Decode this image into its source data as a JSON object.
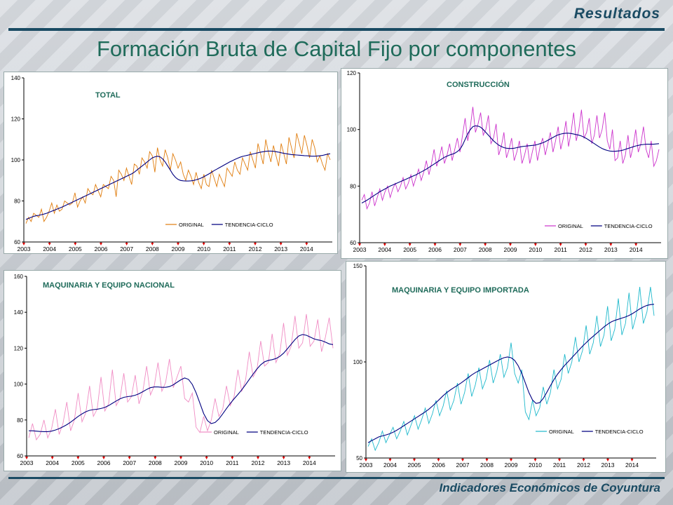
{
  "header": {
    "section_label": "Resultados"
  },
  "title": "Formación Bruta de Capital Fijo por componentes",
  "footer": {
    "label": "Indicadores Económicos de Coyuntura"
  },
  "chart_data": [
    {
      "type": "line",
      "title": "TOTAL",
      "ylim": [
        60,
        140
      ],
      "yticks": [
        60,
        80,
        100,
        120,
        140
      ],
      "xticks": [
        "2003",
        "2004",
        "2005",
        "2006",
        "2007",
        "2008",
        "2009",
        "2010",
        "2011",
        "2012",
        "2013",
        "2014"
      ],
      "legend": "bottom-center",
      "series": [
        {
          "name": "ORIGINAL",
          "color": "#e07d0e",
          "values": [
            69,
            72,
            70,
            74,
            73,
            72,
            76,
            70,
            72,
            75,
            79,
            74,
            78,
            75,
            76,
            80,
            79,
            78,
            79,
            84,
            77,
            80,
            82,
            79,
            86,
            84,
            83,
            88,
            85,
            82,
            88,
            87,
            86,
            92,
            90,
            82,
            95,
            93,
            90,
            96,
            92,
            88,
            98,
            97,
            93,
            101,
            99,
            96,
            104,
            102,
            94,
            106,
            100,
            97,
            105,
            101,
            95,
            103,
            100,
            96,
            99,
            93,
            90,
            95,
            92,
            88,
            94,
            89,
            86,
            93,
            88,
            87,
            95,
            91,
            87,
            93,
            90,
            87,
            96,
            94,
            92,
            99,
            95,
            93,
            101,
            98,
            95,
            104,
            100,
            96,
            108,
            103,
            98,
            110,
            104,
            99,
            107,
            102,
            97,
            108,
            103,
            98,
            111,
            106,
            101,
            113,
            108,
            103,
            112,
            107,
            101,
            110,
            106,
            99,
            102,
            98,
            95,
            103,
            100
          ]
        },
        {
          "name": "TENDENCIA-CICLO",
          "color": "#000080",
          "values": [
            71,
            71.5,
            72,
            72.5,
            72.8,
            73,
            73.3,
            73.6,
            74,
            74.5,
            75,
            75.5,
            76,
            76.5,
            77,
            77.6,
            78.2,
            78.8,
            79.4,
            80,
            80.6,
            81.2,
            81.8,
            82.4,
            83,
            83.6,
            84.2,
            84.8,
            85.4,
            86,
            86.6,
            87.2,
            87.8,
            88.4,
            89,
            89.6,
            90.2,
            90.8,
            91.4,
            92,
            92.6,
            93.2,
            94,
            95,
            96,
            97,
            98,
            99,
            100,
            101,
            101.5,
            101.8,
            101.5,
            100.5,
            99,
            97,
            95,
            93,
            91.5,
            90.5,
            90,
            89.8,
            89.7,
            89.7,
            89.8,
            90,
            90.3,
            90.7,
            91.2,
            91.8,
            92.5,
            93.2,
            94,
            94.8,
            95.5,
            96.2,
            96.9,
            97.6,
            98.3,
            99,
            99.6,
            100.2,
            100.8,
            101.3,
            101.7,
            102,
            102.3,
            102.6,
            102.9,
            103.2,
            103.5,
            103.8,
            104,
            104.2,
            104.3,
            104.3,
            104.2,
            104,
            103.8,
            103.5,
            103.2,
            103,
            102.8,
            102.6,
            102.5,
            102.4,
            102.3,
            102.2,
            102.1,
            102,
            101.9,
            101.8,
            101.8,
            101.9,
            102,
            102.2,
            102.5,
            102.8,
            103
          ]
        }
      ]
    },
    {
      "type": "line",
      "title": "CONSTRUCCIÓN",
      "ylim": [
        60,
        120
      ],
      "yticks": [
        60,
        80,
        100,
        120
      ],
      "xticks": [
        "2003",
        "2004",
        "2005",
        "2006",
        "2007",
        "2008",
        "2009",
        "2010",
        "2011",
        "2012",
        "2013",
        "2014"
      ],
      "legend": "bottom-right",
      "series": [
        {
          "name": "ORIGINAL",
          "color": "#cc33cc",
          "values": [
            75,
            77,
            72,
            74,
            78,
            73,
            76,
            79,
            75,
            78,
            80,
            76,
            79,
            81,
            78,
            80,
            83,
            79,
            81,
            84,
            80,
            83,
            86,
            82,
            85,
            89,
            84,
            88,
            93,
            87,
            90,
            94,
            88,
            91,
            95,
            89,
            93,
            97,
            92,
            98,
            104,
            96,
            101,
            108,
            99,
            102,
            106,
            98,
            100,
            105,
            95,
            97,
            102,
            91,
            94,
            99,
            90,
            93,
            97,
            89,
            92,
            96,
            88,
            91,
            95,
            88,
            92,
            96,
            89,
            94,
            97,
            91,
            95,
            99,
            92,
            96,
            101,
            93,
            97,
            103,
            94,
            99,
            106,
            96,
            100,
            107,
            97,
            99,
            104,
            95,
            98,
            105,
            97,
            100,
            106,
            96,
            93,
            100,
            89,
            90,
            96,
            88,
            91,
            98,
            90,
            94,
            100,
            92,
            95,
            101,
            93,
            90,
            96,
            87,
            89,
            93
          ]
        },
        {
          "name": "TENDENCIA-CICLO",
          "color": "#000080",
          "values": [
            74,
            74.5,
            75,
            75.6,
            76.2,
            76.8,
            77.4,
            78,
            78.5,
            79,
            79.5,
            80,
            80.4,
            80.8,
            81.2,
            81.6,
            82,
            82.4,
            82.8,
            83.2,
            83.6,
            84,
            84.5,
            85,
            85.5,
            86,
            86.6,
            87.2,
            87.8,
            88.4,
            89,
            89.6,
            90.2,
            90.6,
            91,
            91.3,
            91.6,
            92.2,
            93,
            94.5,
            96.5,
            98.5,
            100,
            101,
            101.3,
            101.2,
            100.8,
            100,
            99,
            98,
            97,
            96,
            95.2,
            94.5,
            94,
            93.6,
            93.4,
            93.3,
            93.3,
            93.4,
            93.6,
            93.8,
            94,
            94.1,
            94.2,
            94.3,
            94.4,
            94.5,
            94.7,
            95,
            95.3,
            95.7,
            96.2,
            96.7,
            97.2,
            97.7,
            98.1,
            98.4,
            98.6,
            98.7,
            98.7,
            98.6,
            98.4,
            98.2,
            98,
            97.7,
            97.3,
            96.8,
            96.2,
            95.6,
            95,
            94.4,
            93.8,
            93.3,
            92.9,
            92.6,
            92.4,
            92.3,
            92.3,
            92.4,
            92.5,
            92.7,
            93,
            93.3,
            93.6,
            93.9,
            94.2,
            94.4,
            94.6,
            94.7,
            94.8,
            94.8,
            94.8,
            94.8,
            94.9,
            95
          ]
        }
      ]
    },
    {
      "type": "line",
      "title": "MAQUINARIA Y EQUIPO NACIONAL",
      "ylim": [
        60,
        160
      ],
      "yticks": [
        60,
        80,
        100,
        120,
        140,
        160
      ],
      "xticks": [
        "2003",
        "2004",
        "2005",
        "2006",
        "2007",
        "2008",
        "2009",
        "2010",
        "2011",
        "2012",
        "2013",
        "2014"
      ],
      "legend": "bottom-center",
      "series": [
        {
          "name": "ORIGINAL",
          "color": "#f08cc4",
          "values": [
            70,
            78,
            69,
            72,
            80,
            70,
            75,
            86,
            72,
            78,
            90,
            74,
            80,
            95,
            79,
            84,
            99,
            82,
            86,
            104,
            85,
            89,
            108,
            88,
            92,
            106,
            90,
            93,
            105,
            89,
            96,
            110,
            94,
            99,
            112,
            96,
            101,
            114,
            98,
            104,
            110,
            92,
            90,
            95,
            76,
            73,
            82,
            74,
            80,
            92,
            82,
            86,
            99,
            88,
            93,
            108,
            96,
            102,
            118,
            104,
            108,
            124,
            110,
            112,
            128,
            112,
            117,
            134,
            116,
            121,
            138,
            120,
            123,
            139,
            121,
            124,
            136,
            118,
            126,
            137,
            120
          ]
        },
        {
          "name": "TENDENCIA-CICLO",
          "color": "#000080",
          "values": [
            74,
            74,
            73.8,
            73.6,
            73.5,
            73.5,
            73.8,
            74.4,
            75.2,
            76.2,
            77.4,
            78.8,
            80.4,
            82,
            83.4,
            84.6,
            85.4,
            85.8,
            86,
            86.4,
            87,
            88,
            89.3,
            90.6,
            91.8,
            92.6,
            93,
            93.3,
            93.8,
            94.6,
            95.8,
            97,
            98,
            98.4,
            98.4,
            98.2,
            98.2,
            98.6,
            99.6,
            101,
            102.4,
            103.4,
            102.6,
            99.8,
            95.2,
            89.4,
            83.6,
            79.6,
            78,
            78.6,
            80.6,
            83.4,
            86.4,
            89.2,
            91.8,
            94.2,
            96.8,
            99.6,
            102.6,
            105.6,
            108.4,
            110.8,
            112.4,
            113.2,
            113.6,
            114.2,
            115.4,
            117.2,
            119.6,
            122.2,
            124.8,
            126.8,
            127.6,
            127.2,
            126.2,
            125.2,
            124.6,
            124.2,
            123.4,
            122.4,
            122
          ]
        }
      ]
    },
    {
      "type": "line",
      "title": "MAQUINARIA Y EQUIPO IMPORTADA",
      "ylim": [
        50,
        150
      ],
      "yticks": [
        50,
        100,
        150
      ],
      "xticks": [
        "2003",
        "2004",
        "2005",
        "2006",
        "2007",
        "2008",
        "2009",
        "2010",
        "2011",
        "2012",
        "2013",
        "2014"
      ],
      "legend": "bottom-center",
      "series": [
        {
          "name": "ORIGINAL",
          "color": "#1fb9cc",
          "values": [
            56,
            60,
            54,
            58,
            64,
            58,
            62,
            66,
            60,
            64,
            69,
            62,
            67,
            72,
            65,
            70,
            76,
            68,
            73,
            80,
            72,
            77,
            85,
            75,
            80,
            89,
            78,
            84,
            94,
            82,
            88,
            97,
            86,
            91,
            101,
            89,
            95,
            104,
            92,
            97,
            110,
            94,
            89,
            96,
            74,
            70,
            80,
            72,
            76,
            87,
            78,
            84,
            96,
            86,
            91,
            104,
            94,
            100,
            113,
            100,
            106,
            119,
            104,
            110,
            124,
            108,
            114,
            129,
            111,
            117,
            133,
            114,
            120,
            136,
            117,
            124,
            139,
            120,
            126,
            139,
            124
          ]
        },
        {
          "name": "TENDENCIA-CICLO",
          "color": "#000080",
          "values": [
            58,
            59,
            60,
            61,
            61.5,
            62,
            62.6,
            63.4,
            64.4,
            65.6,
            66.8,
            68,
            69.2,
            70.4,
            71.6,
            72.8,
            74,
            75.4,
            77,
            78.8,
            80.6,
            82.4,
            84,
            85.4,
            86.6,
            87.8,
            89,
            90.4,
            91.8,
            93.2,
            94.4,
            95.4,
            96.4,
            97.4,
            98.4,
            99.4,
            100.4,
            101.4,
            102.2,
            102.6,
            102.2,
            100.8,
            98,
            94,
            89,
            84,
            80.2,
            78.4,
            78.8,
            81,
            84.2,
            87.6,
            90.8,
            93.6,
            96,
            98.2,
            100.2,
            102.2,
            104.2,
            106.2,
            108.2,
            110,
            111.8,
            113.4,
            115,
            116.6,
            118.2,
            119.6,
            120.8,
            121.6,
            122.2,
            122.8,
            123.4,
            124.2,
            125.2,
            126.4,
            127.6,
            128.6,
            129.4,
            129.8,
            130
          ]
        }
      ]
    }
  ]
}
